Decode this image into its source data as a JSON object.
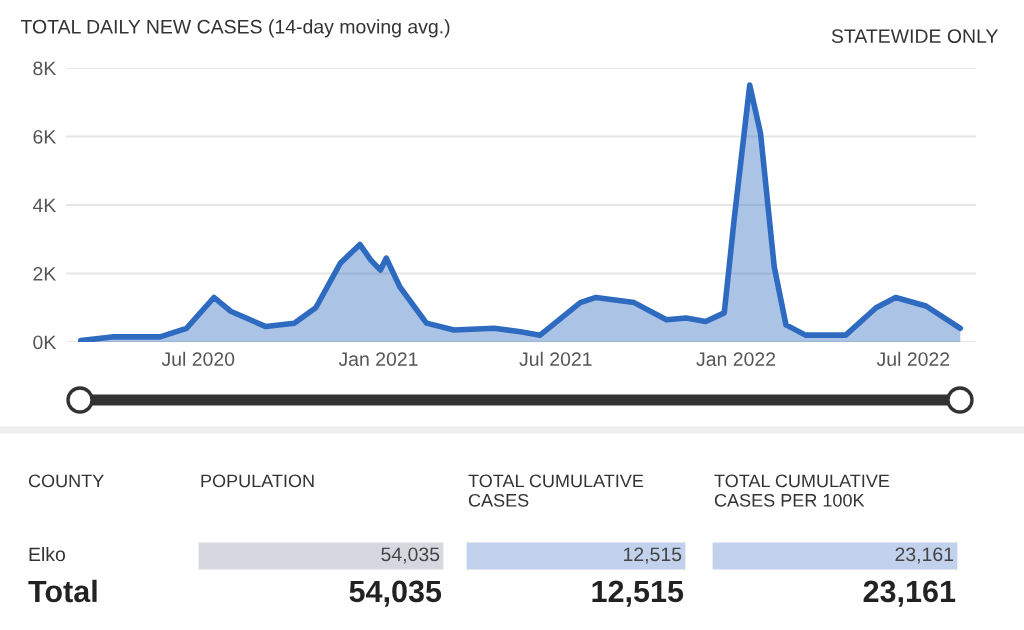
{
  "chart_data": [
    {
      "type": "area",
      "title": "TOTAL DAILY NEW CASES (14-day moving avg.)",
      "annotations": [
        "STATEWIDE ONLY"
      ],
      "x": [
        "2020-03-03",
        "2020-04-06",
        "2020-05-23",
        "2020-06-19",
        "2020-07-17",
        "2020-08-03",
        "2020-08-19",
        "2020-09-08",
        "2020-10-07",
        "2020-10-29",
        "2020-11-23",
        "2020-12-13",
        "2020-12-24",
        "2021-01-03",
        "2021-01-09",
        "2021-01-23",
        "2021-02-19",
        "2021-03-19",
        "2021-04-29",
        "2021-05-26",
        "2021-06-15",
        "2021-07-26",
        "2021-08-11",
        "2021-09-19",
        "2021-10-22",
        "2021-11-11",
        "2021-12-01",
        "2021-12-20",
        "2021-12-30",
        "2022-01-15",
        "2022-01-26",
        "2022-02-09",
        "2022-02-21",
        "2022-03-13",
        "2022-04-23",
        "2022-05-24",
        "2022-06-13",
        "2022-07-14",
        "2022-08-18"
      ],
      "series": [
        {
          "color": "#2e6bc0",
          "values": [
            40,
            150,
            150,
            400,
            1300,
            900,
            700,
            450,
            550,
            1000,
            2300,
            2850,
            2400,
            2100,
            2450,
            1600,
            550,
            350,
            400,
            300,
            200,
            1150,
            1300,
            1150,
            650,
            700,
            600,
            850,
            3550,
            7500,
            6100,
            2200,
            500,
            200,
            200,
            1000,
            1300,
            1050,
            400
          ]
        }
      ],
      "xlim": [
        "2020-02-17",
        "2022-09-03"
      ],
      "xticks": [
        {
          "value": "2020-07-01",
          "label": "Jul 2020"
        },
        {
          "value": "2021-01-01",
          "label": "Jan 2021"
        },
        {
          "value": "2021-07-01",
          "label": "Jul 2021"
        },
        {
          "value": "2022-01-01",
          "label": "Jan 2022"
        },
        {
          "value": "2022-07-01",
          "label": "Jul 2022"
        }
      ],
      "ylim": [
        0,
        8000
      ],
      "yticks": [
        {
          "value": 0,
          "label": "0K"
        },
        {
          "value": 2000,
          "label": "2K"
        },
        {
          "value": 4000,
          "label": "4K"
        },
        {
          "value": 6000,
          "label": "6K"
        },
        {
          "value": 8000,
          "label": "8K"
        }
      ],
      "grid": "y",
      "legend": false
    },
    {
      "type": "other",
      "annotations": [
        "COUNTY",
        "POPULATION",
        "TOTAL CUMULATIVE\nCASES",
        "TOTAL CUMULATIVE\nCASES PER 100K",
        "Elko",
        "54,035",
        "12,515",
        "23,161",
        "Total",
        "54,035",
        "12,515",
        "23,161"
      ]
    }
  ]
}
